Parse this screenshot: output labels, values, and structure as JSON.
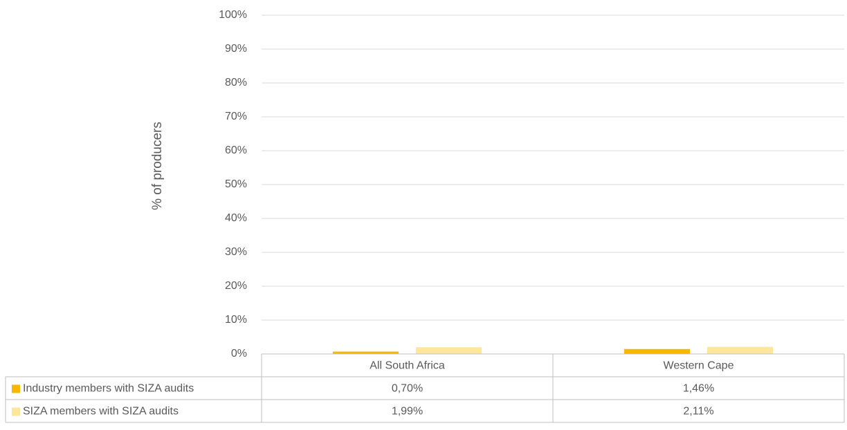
{
  "chart_data": {
    "type": "bar",
    "y_axis_label": "% of producers",
    "categories": [
      "All South Africa",
      "Western Cape"
    ],
    "series": [
      {
        "name": "Industry members with SIZA audits",
        "color": "#f7b800",
        "values": [
          0.7,
          1.46
        ],
        "value_labels": [
          "0,70%",
          "1,46%"
        ]
      },
      {
        "name": "SIZA members with SIZA audits",
        "color": "#fee79c",
        "values": [
          1.99,
          2.11
        ],
        "value_labels": [
          "1,99%",
          "2,11%"
        ]
      }
    ],
    "ylim": [
      0,
      100
    ],
    "yticks": [
      {
        "value": 0,
        "label": "0%"
      },
      {
        "value": 10,
        "label": "10%"
      },
      {
        "value": 20,
        "label": "20%"
      },
      {
        "value": 30,
        "label": "30%"
      },
      {
        "value": 40,
        "label": "40%"
      },
      {
        "value": 50,
        "label": "50%"
      },
      {
        "value": 60,
        "label": "60%"
      },
      {
        "value": 70,
        "label": "70%"
      },
      {
        "value": 80,
        "label": "80%"
      },
      {
        "value": 90,
        "label": "90%"
      },
      {
        "value": 100,
        "label": "100%"
      }
    ],
    "grid": true,
    "data_table": true
  }
}
